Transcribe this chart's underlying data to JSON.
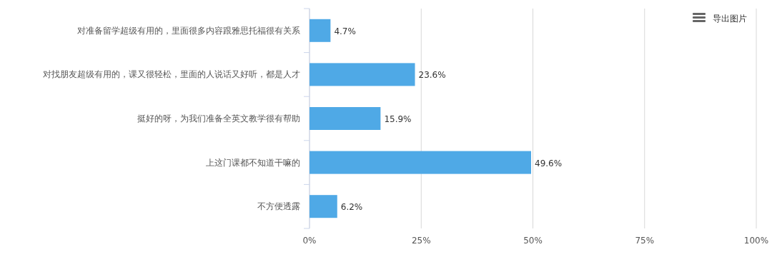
{
  "chart_data": {
    "type": "bar",
    "orientation": "horizontal",
    "categories": [
      "对准备留学超级有用的，里面很多内容跟雅思托福很有关系",
      "对找朋友超级有用的，课又很轻松，里面的人说话又好听，都是人才",
      "挺好的呀，为我们准备全英文教学很有帮助",
      "上这门课都不知道干嘛的",
      "不方便透露"
    ],
    "values": [
      4.7,
      23.6,
      15.9,
      49.6,
      6.2
    ],
    "value_labels": [
      "4.7%",
      "23.6%",
      "15.9%",
      "49.6%",
      "6.2%"
    ],
    "color": "#4fa9e6",
    "xlim": [
      0,
      100
    ],
    "xticks": [
      {
        "value": 0,
        "label": "0%"
      },
      {
        "value": 25,
        "label": "25%"
      },
      {
        "value": 50,
        "label": "50%"
      },
      {
        "value": 75,
        "label": "75%"
      },
      {
        "value": 100,
        "label": "100%"
      }
    ],
    "grid": "x",
    "annotations": [
      "导出图片"
    ]
  }
}
